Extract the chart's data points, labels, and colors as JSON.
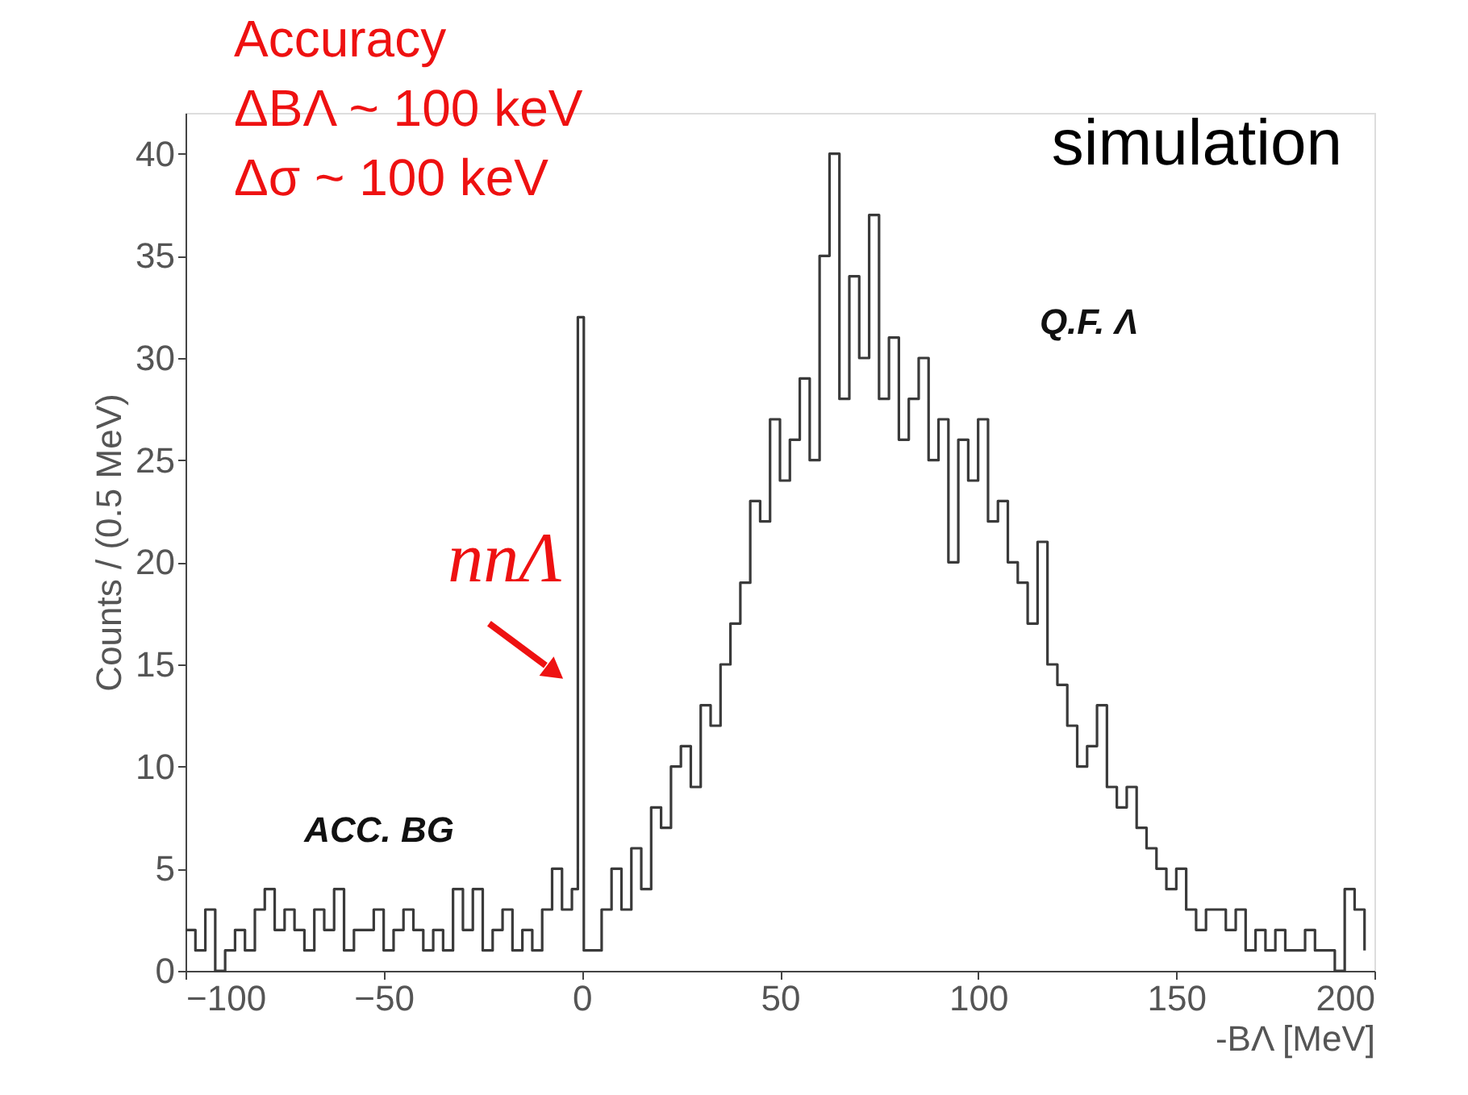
{
  "chart_data": {
    "type": "step",
    "xlabel": "-BΛ [MeV]",
    "ylabel": "Counts / (0.5 MeV)",
    "xlim": [
      -100,
      200
    ],
    "xticks": [
      -100,
      -50,
      0,
      50,
      100,
      150,
      200
    ],
    "ylim": [
      0,
      42
    ],
    "yticks": [
      0,
      5,
      10,
      15,
      20,
      25,
      30,
      35,
      40
    ],
    "grid": false,
    "marker": "none",
    "line_style": "solid",
    "series": [
      {
        "color": "#3a3a3a",
        "x": [
          -100,
          -97.5,
          -95,
          -92.5,
          -90,
          -87.5,
          -85,
          -82.5,
          -80,
          -77.5,
          -75,
          -72.5,
          -70,
          -67.5,
          -65,
          -62.5,
          -60,
          -57.5,
          -55,
          -52.5,
          -50,
          -47.5,
          -45,
          -42.5,
          -40,
          -37.5,
          -35,
          -32.5,
          -30,
          -27.5,
          -25,
          -22.5,
          -20,
          -17.5,
          -15,
          -12.5,
          -10,
          -7.5,
          -5,
          -2.5,
          -1,
          0.5,
          2.5,
          5,
          7.5,
          10,
          12.5,
          15,
          17.5,
          20,
          22.5,
          25,
          27.5,
          30,
          32.5,
          35,
          37.5,
          40,
          42.5,
          45,
          47.5,
          50,
          52.5,
          55,
          57.5,
          60,
          62.5,
          65,
          67.5,
          70,
          72.5,
          75,
          77.5,
          80,
          82.5,
          85,
          87.5,
          90,
          92.5,
          95,
          97.5,
          100,
          102.5,
          105,
          107.5,
          110,
          112.5,
          115,
          117.5,
          120,
          122.5,
          125,
          127.5,
          130,
          132.5,
          135,
          137.5,
          140,
          142.5,
          145,
          147.5,
          150,
          152.5,
          155,
          157.5,
          160,
          162.5,
          165,
          167.5,
          170,
          172.5,
          175,
          177.5,
          180,
          182.5,
          185,
          187.5,
          190,
          192.5,
          195,
          197.5
        ],
        "values": [
          2,
          1,
          3,
          0,
          1,
          2,
          1,
          3,
          4,
          2,
          3,
          2,
          1,
          3,
          2,
          4,
          1,
          2,
          2,
          3,
          1,
          2,
          3,
          2,
          1,
          2,
          1,
          4,
          2,
          4,
          1,
          2,
          3,
          1,
          2,
          1,
          3,
          5,
          3,
          4,
          32,
          1,
          1,
          3,
          5,
          3,
          6,
          4,
          8,
          7,
          10,
          11,
          9,
          13,
          12,
          15,
          17,
          19,
          23,
          22,
          27,
          24,
          26,
          29,
          25,
          35,
          40,
          28,
          34,
          30,
          37,
          28,
          31,
          26,
          28,
          30,
          25,
          27,
          20,
          26,
          24,
          27,
          22,
          23,
          20,
          19,
          17,
          21,
          15,
          14,
          12,
          10,
          11,
          13,
          9,
          8,
          9,
          7,
          6,
          5,
          4,
          5,
          3,
          2,
          3,
          3,
          2,
          3,
          1,
          2,
          1,
          2,
          1,
          1,
          2,
          1,
          1,
          0,
          4,
          3,
          1
        ]
      }
    ],
    "annotations": [
      "Accuracy",
      "ΔBΛ ~ 100 keV",
      "Δσ    ~ 100 keV",
      "simulation",
      "ACC. BG",
      "Q.F. Λ",
      {
        "text": "nnΛ",
        "x": -1,
        "y": 14
      }
    ]
  }
}
